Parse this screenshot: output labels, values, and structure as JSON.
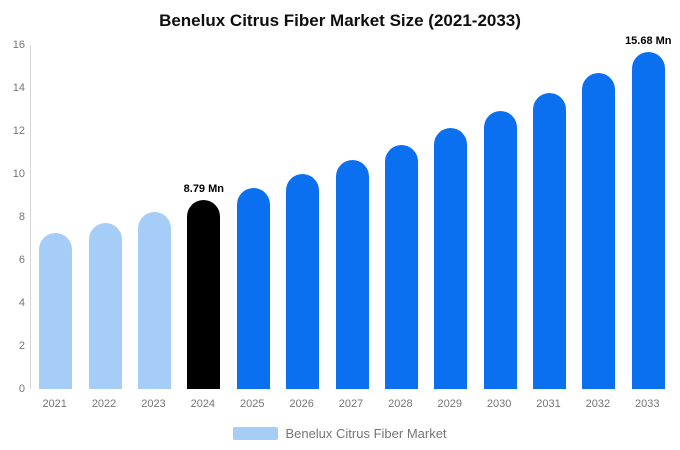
{
  "title": "Benelux Citrus Fiber Market Size (2021-2033)",
  "legend": {
    "label": "Benelux Citrus Fiber Market",
    "swatch_color": "#a6cdf5"
  },
  "colors": {
    "historical_bar": "#a6cdf5",
    "base_year_bar": "#000000",
    "forecast_bar": "#0b70f0",
    "axis_line": "#d6d6d6",
    "tick_text": "#757575",
    "title_text": "#0f0f0f",
    "annotation_text": "#000000"
  },
  "chart_data": {
    "type": "bar",
    "title": "Benelux Citrus Fiber Market Size (2021-2033)",
    "xlabel": "",
    "ylabel": "",
    "categories": [
      "2021",
      "2022",
      "2023",
      "2024",
      "2025",
      "2026",
      "2027",
      "2028",
      "2029",
      "2030",
      "2031",
      "2032",
      "2033"
    ],
    "values": [
      7.25,
      7.73,
      8.24,
      8.79,
      9.37,
      10.0,
      10.66,
      11.37,
      12.12,
      12.93,
      13.79,
      14.7,
      15.68
    ],
    "bar_colors": [
      "#a6cdf5",
      "#a6cdf5",
      "#a6cdf5",
      "#000000",
      "#0b70f0",
      "#0b70f0",
      "#0b70f0",
      "#0b70f0",
      "#0b70f0",
      "#0b70f0",
      "#0b70f0",
      "#0b70f0",
      "#0b70f0"
    ],
    "data_labels": [
      {
        "category": "2024",
        "index": 3,
        "text": "8.79 Mn"
      },
      {
        "category": "2033",
        "index": 12,
        "text": "15.68 Mn"
      }
    ],
    "ylim": [
      0,
      16
    ],
    "yticks": [
      0,
      2,
      4,
      6,
      8,
      10,
      12,
      14,
      16
    ],
    "grid": false,
    "legend_position": "bottom",
    "legend_entries": [
      "Benelux Citrus Fiber Market"
    ]
  }
}
